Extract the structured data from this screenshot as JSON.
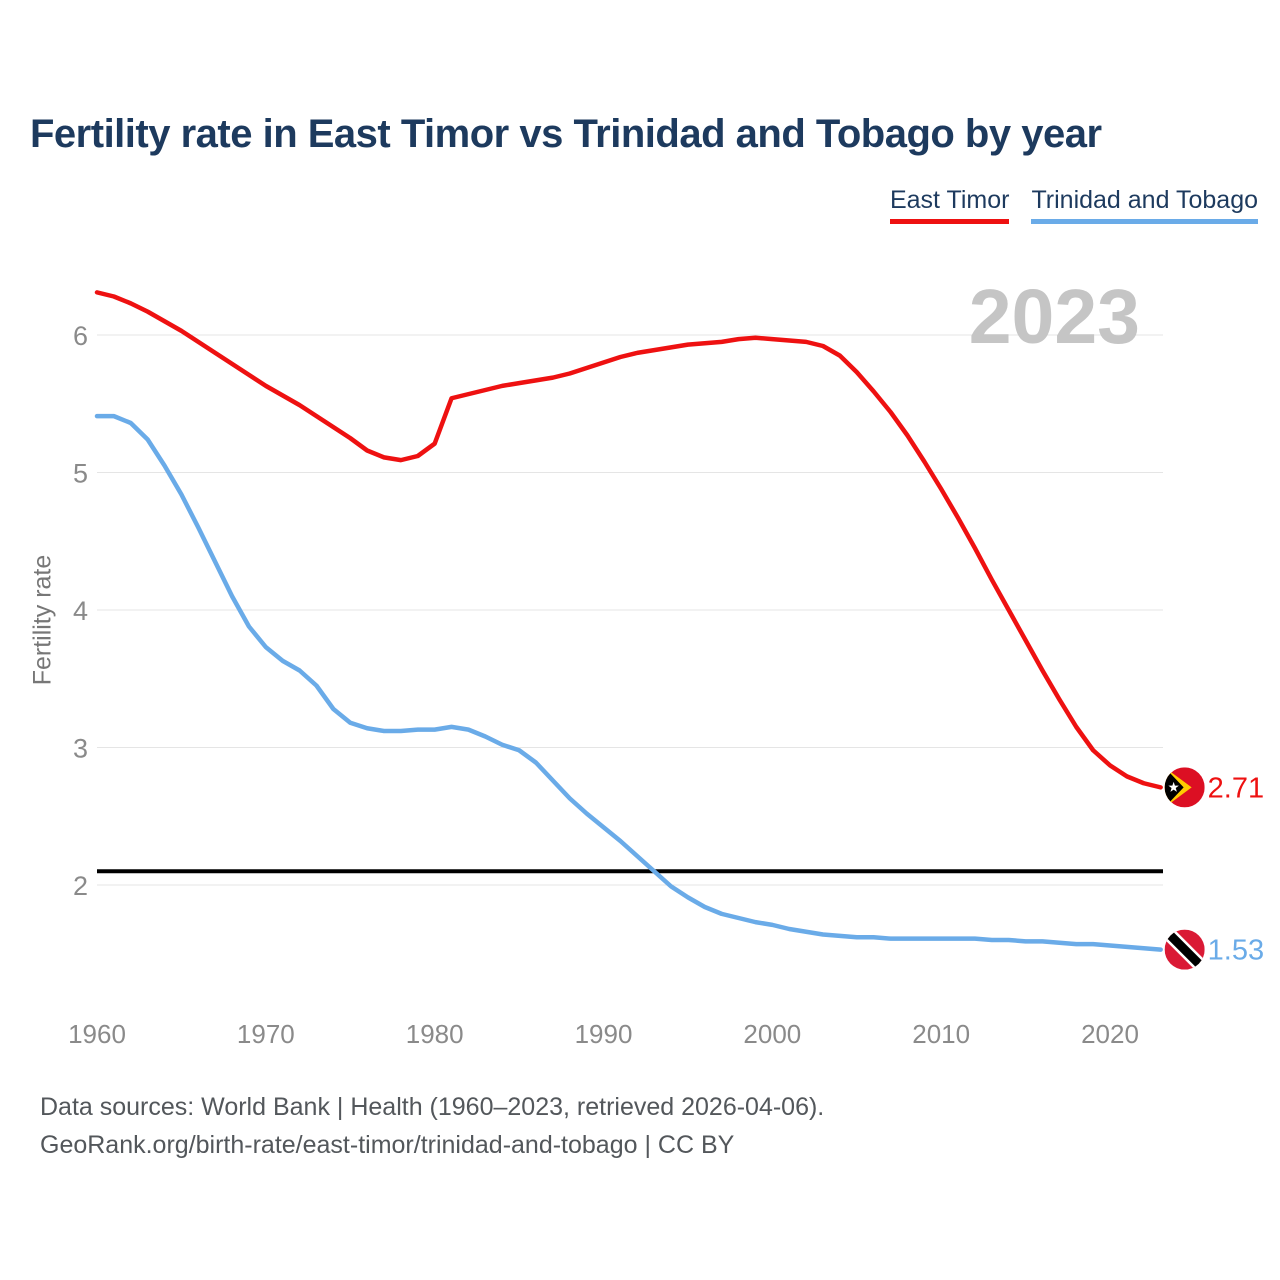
{
  "title": "Fertility rate in East Timor vs Trinidad and Tobago by year",
  "legend": {
    "items": [
      {
        "label": "East Timor",
        "color": "#ee1111"
      },
      {
        "label": "Trinidad and Tobago",
        "color": "#6aabe8"
      }
    ]
  },
  "y_axis_label": "Fertility rate",
  "footer": {
    "line1": "Data sources: World Bank | Health (1960–2023, retrieved 2026-04-06).",
    "line2": "GeoRank.org/birth-rate/east-timor/trinidad-and-tobago | CC BY"
  },
  "chart_data": {
    "type": "line",
    "title": "Fertility rate in East Timor vs Trinidad and Tobago by year",
    "xlabel": "",
    "ylabel": "Fertility rate",
    "watermark": "2023",
    "grid": true,
    "legend_position": "top-right",
    "ylim": [
      1.35,
      6.45
    ],
    "xlim": [
      1960,
      2023
    ],
    "y_ticks": [
      2,
      3,
      4,
      5,
      6
    ],
    "x_ticks": [
      1960,
      1970,
      1980,
      1990,
      2000,
      2010,
      2020
    ],
    "reference_line": {
      "value": 2.1,
      "color": "#000000",
      "meaning": "replacement-level fertility"
    },
    "x": [
      1960,
      1961,
      1962,
      1963,
      1964,
      1965,
      1966,
      1967,
      1968,
      1969,
      1970,
      1971,
      1972,
      1973,
      1974,
      1975,
      1976,
      1977,
      1978,
      1979,
      1980,
      1981,
      1982,
      1983,
      1984,
      1985,
      1986,
      1987,
      1988,
      1989,
      1990,
      1991,
      1992,
      1993,
      1994,
      1995,
      1996,
      1997,
      1998,
      1999,
      2000,
      2001,
      2002,
      2003,
      2004,
      2005,
      2006,
      2007,
      2008,
      2009,
      2010,
      2011,
      2012,
      2013,
      2014,
      2015,
      2016,
      2017,
      2018,
      2019,
      2020,
      2021,
      2022,
      2023
    ],
    "series": [
      {
        "name": "East Timor",
        "color": "#ee1111",
        "end_label": "2.71",
        "end_year_value": 2.71,
        "flag": "east-timor",
        "values": [
          6.31,
          6.28,
          6.23,
          6.17,
          6.1,
          6.03,
          5.95,
          5.87,
          5.79,
          5.71,
          5.63,
          5.56,
          5.49,
          5.41,
          5.33,
          5.25,
          5.16,
          5.11,
          5.09,
          5.12,
          5.21,
          5.54,
          5.57,
          5.6,
          5.63,
          5.65,
          5.67,
          5.69,
          5.72,
          5.76,
          5.8,
          5.84,
          5.87,
          5.89,
          5.91,
          5.93,
          5.94,
          5.95,
          5.97,
          5.98,
          5.97,
          5.96,
          5.95,
          5.92,
          5.85,
          5.73,
          5.59,
          5.44,
          5.27,
          5.08,
          4.88,
          4.67,
          4.45,
          4.22,
          4.0,
          3.78,
          3.56,
          3.35,
          3.15,
          2.98,
          2.87,
          2.79,
          2.74,
          2.71
        ]
      },
      {
        "name": "Trinidad and Tobago",
        "color": "#6aabe8",
        "end_label": "1.53",
        "end_year_value": 1.53,
        "flag": "trinidad-and-tobago",
        "values": [
          5.41,
          5.41,
          5.36,
          5.24,
          5.05,
          4.84,
          4.6,
          4.35,
          4.1,
          3.88,
          3.73,
          3.63,
          3.56,
          3.45,
          3.28,
          3.18,
          3.14,
          3.12,
          3.12,
          3.13,
          3.13,
          3.15,
          3.13,
          3.08,
          3.02,
          2.98,
          2.89,
          2.76,
          2.63,
          2.52,
          2.42,
          2.32,
          2.21,
          2.1,
          1.99,
          1.91,
          1.84,
          1.79,
          1.76,
          1.73,
          1.71,
          1.68,
          1.66,
          1.64,
          1.63,
          1.62,
          1.62,
          1.61,
          1.61,
          1.61,
          1.61,
          1.61,
          1.61,
          1.6,
          1.6,
          1.59,
          1.59,
          1.58,
          1.57,
          1.57,
          1.56,
          1.55,
          1.54,
          1.53
        ]
      }
    ]
  }
}
